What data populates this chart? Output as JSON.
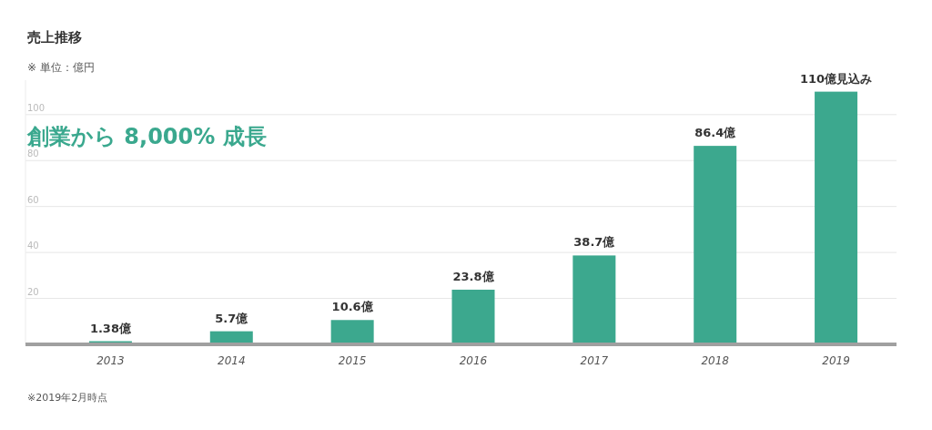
{
  "chart_data": {
    "type": "bar",
    "title": "売上推移",
    "subtitle": "※ 単位：億円",
    "categories": [
      "2013",
      "2014",
      "2015",
      "2016",
      "2017",
      "2018",
      "2019"
    ],
    "values": [
      1.38,
      5.7,
      10.6,
      23.8,
      38.7,
      86.4,
      110
    ],
    "value_labels": [
      "1.38億",
      "5.7億",
      "10.6億",
      "23.8億",
      "38.7億",
      "86.4億",
      "110億見込み"
    ],
    "color": "#3ca88e",
    "ylim": [
      0,
      115
    ],
    "yticks": [
      20,
      40,
      60,
      80,
      100
    ],
    "grid": "y",
    "annotations": [
      "創業から 8,000% 成長",
      "※2019年2月時点"
    ]
  }
}
